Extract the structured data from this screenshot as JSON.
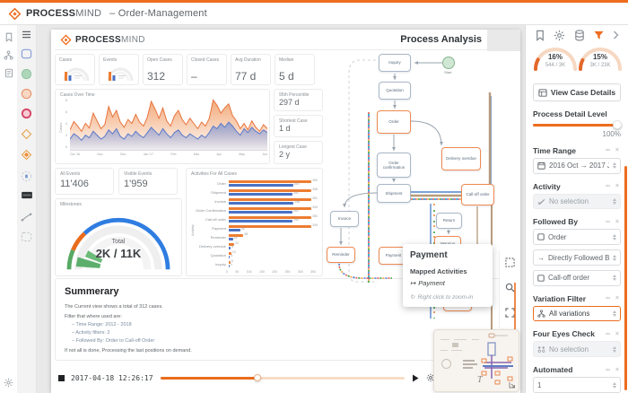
{
  "topbar": {
    "brand_bold": "PROCESS",
    "brand_light": "MIND",
    "subtitle": "– Order-Management"
  },
  "dashboard": {
    "brand_bold": "PROCESS",
    "brand_light": "MIND",
    "title": "Process Analysis",
    "kpis": [
      {
        "label": "Cases",
        "value": ""
      },
      {
        "label": "Events",
        "value": ""
      },
      {
        "label": "Open Cases",
        "value": "312"
      },
      {
        "label": "Closed Cases",
        "value": "–"
      },
      {
        "label": "Avg Duration",
        "value": "77 d"
      },
      {
        "label": "Median",
        "value": "5 d"
      }
    ],
    "cases_over_time": {
      "title": "Cases Over Time",
      "ylabel": "Cases",
      "ymax": 8,
      "y_ticks": [
        "8",
        "6",
        "4",
        "2",
        "0"
      ],
      "x_labels": [
        "Oct '16",
        "Nov",
        "Dec",
        "Jan '17",
        "Feb",
        "Mar",
        "Apr",
        "May",
        "Jun"
      ],
      "series": [
        {
          "name": "All cases",
          "color": "#e8743c",
          "values": [
            3.2,
            4.5,
            3.8,
            3.0,
            4.2,
            3.5,
            5.8,
            4.6,
            3.4,
            4.0,
            6.8,
            5.2,
            6.2,
            4.4,
            3.6,
            4.8,
            4.2,
            5.6,
            4.4,
            3.8,
            5.2,
            7.6,
            6.4,
            5.0,
            6.6,
            4.6,
            3.8,
            5.4,
            6.2,
            4.8,
            4.0,
            5.0,
            4.2,
            3.4,
            4.4,
            3.8,
            5.0,
            7.8,
            7.0,
            5.8,
            6.6,
            7.2,
            5.4,
            4.6,
            3.4,
            4.2,
            3.2,
            4.6,
            3.6,
            3.0,
            4.0,
            3.4
          ]
        },
        {
          "name": "Active cases",
          "color": "#5b79c9",
          "values": [
            1.8,
            2.6,
            2.2,
            1.6,
            2.4,
            2.0,
            3.0,
            2.4,
            1.8,
            2.2,
            3.2,
            2.6,
            3.4,
            2.2,
            1.8,
            2.6,
            2.2,
            3.0,
            2.4,
            2.0,
            2.8,
            3.6,
            3.0,
            2.4,
            3.4,
            2.6,
            2.0,
            2.8,
            3.2,
            2.4,
            2.0,
            2.6,
            2.2,
            1.8,
            2.4,
            2.0,
            2.8,
            3.8,
            3.4,
            4.2,
            3.6,
            4.4,
            3.8,
            3.0,
            2.4,
            3.4,
            2.8,
            3.6,
            3.0,
            2.6,
            3.2,
            2.8
          ]
        }
      ]
    },
    "side_stats": [
      {
        "label": "95th Percentile",
        "value": "297 d"
      },
      {
        "label": "Shortest Case",
        "value": "1 d"
      },
      {
        "label": "Longest Case",
        "value": "2 y"
      }
    ],
    "event_cards": [
      {
        "label": "All Events",
        "value": "11'406"
      },
      {
        "label": "Visible Events",
        "value": "1'959"
      }
    ],
    "gauge_panel": {
      "title": "Milestones",
      "center_label": "Total",
      "center_value": "2K / 11K"
    },
    "activities": {
      "title": "Activities For All Cases",
      "ylabel": "Activity",
      "xmax": 350,
      "x_ticks": [
        "0",
        "50",
        "100",
        "150",
        "200",
        "250",
        "300",
        "350"
      ],
      "categories": [
        "Order",
        "Shipment",
        "Invoice",
        "Order Confirmation",
        "Call-off order",
        "Payment",
        "Reminder",
        "Delivery overdue",
        "Quotation",
        "Inquiry"
      ],
      "series": [
        {
          "name": "All",
          "color": "#ed7d31",
          "values": [
            350,
            348,
            351,
            349,
            350,
            349,
            58,
            22,
            10,
            6
          ]
        },
        {
          "name": "Visible",
          "color": "#4a72c4",
          "values": [
            253,
            251,
            256,
            250,
            252,
            45,
            16,
            8,
            5,
            3
          ]
        }
      ]
    },
    "summary": {
      "title": "Summerary",
      "line1": "The Current view shows a total of 312 cases.",
      "line2": "Filter that where used are:",
      "bullets": [
        "–  Time Range: 2012 - 2018",
        "–  Activity filters: 2",
        "–  Followed By: Order to Call-off Order"
      ],
      "line3": "If not all is done, Processing the last positions on demand."
    },
    "timeline": {
      "timestamp": "2017-04-18 12:26:17",
      "progress_pct": 40
    }
  },
  "process_map": {
    "nodes": [
      {
        "label": "Start"
      },
      {
        "label": "Inquiry"
      },
      {
        "label": "Quotation"
      },
      {
        "label": "Order"
      },
      {
        "label": "Order confirmation"
      },
      {
        "label": "Delivery overdue"
      },
      {
        "label": "Shipment"
      },
      {
        "label": "Call-off order"
      },
      {
        "label": "Invoice"
      },
      {
        "label": "Return"
      },
      {
        "label": "Warning"
      },
      {
        "label": "Reminder"
      },
      {
        "label": "Payment"
      },
      {
        "label": "Credit note"
      }
    ]
  },
  "tooltip": {
    "title": "Payment",
    "section": "Mapped Activities",
    "mapped_arrow": "↦",
    "mapped": "Payment",
    "hint_icon": "↻",
    "hint": "Right click to zoom-in"
  },
  "right_panel": {
    "gauges": [
      {
        "pct": "16%",
        "ratio": "544 / 3K",
        "value": 16
      },
      {
        "pct": "15%",
        "ratio": "3K / 23K",
        "value": 15
      }
    ],
    "view_case_details": "View Case Details",
    "detail_level": {
      "label": "Process Detail Level",
      "value": "100%",
      "pct": 100
    },
    "section_icons": "∞  ×",
    "time_range": {
      "label": "Time Range",
      "value": "2016 Oct → 2017 Jun"
    },
    "activity": {
      "label": "Activity",
      "value": "No selection"
    },
    "followed_by": {
      "label": "Followed By",
      "from": "Order",
      "relation": "Directly Followed By",
      "to": "Call-off order",
      "arrow": "→"
    },
    "variation": {
      "label": "Variation Filter",
      "value": "All variations"
    },
    "four_eyes": {
      "label": "Four Eyes Check",
      "value": "No selection"
    },
    "automated": {
      "label": "Automated",
      "value": "1"
    }
  },
  "colors": {
    "accent": "#ed6c1e",
    "blue": "#4a72c4",
    "orange_series": "#ed7d31",
    "green": "#57a863"
  }
}
